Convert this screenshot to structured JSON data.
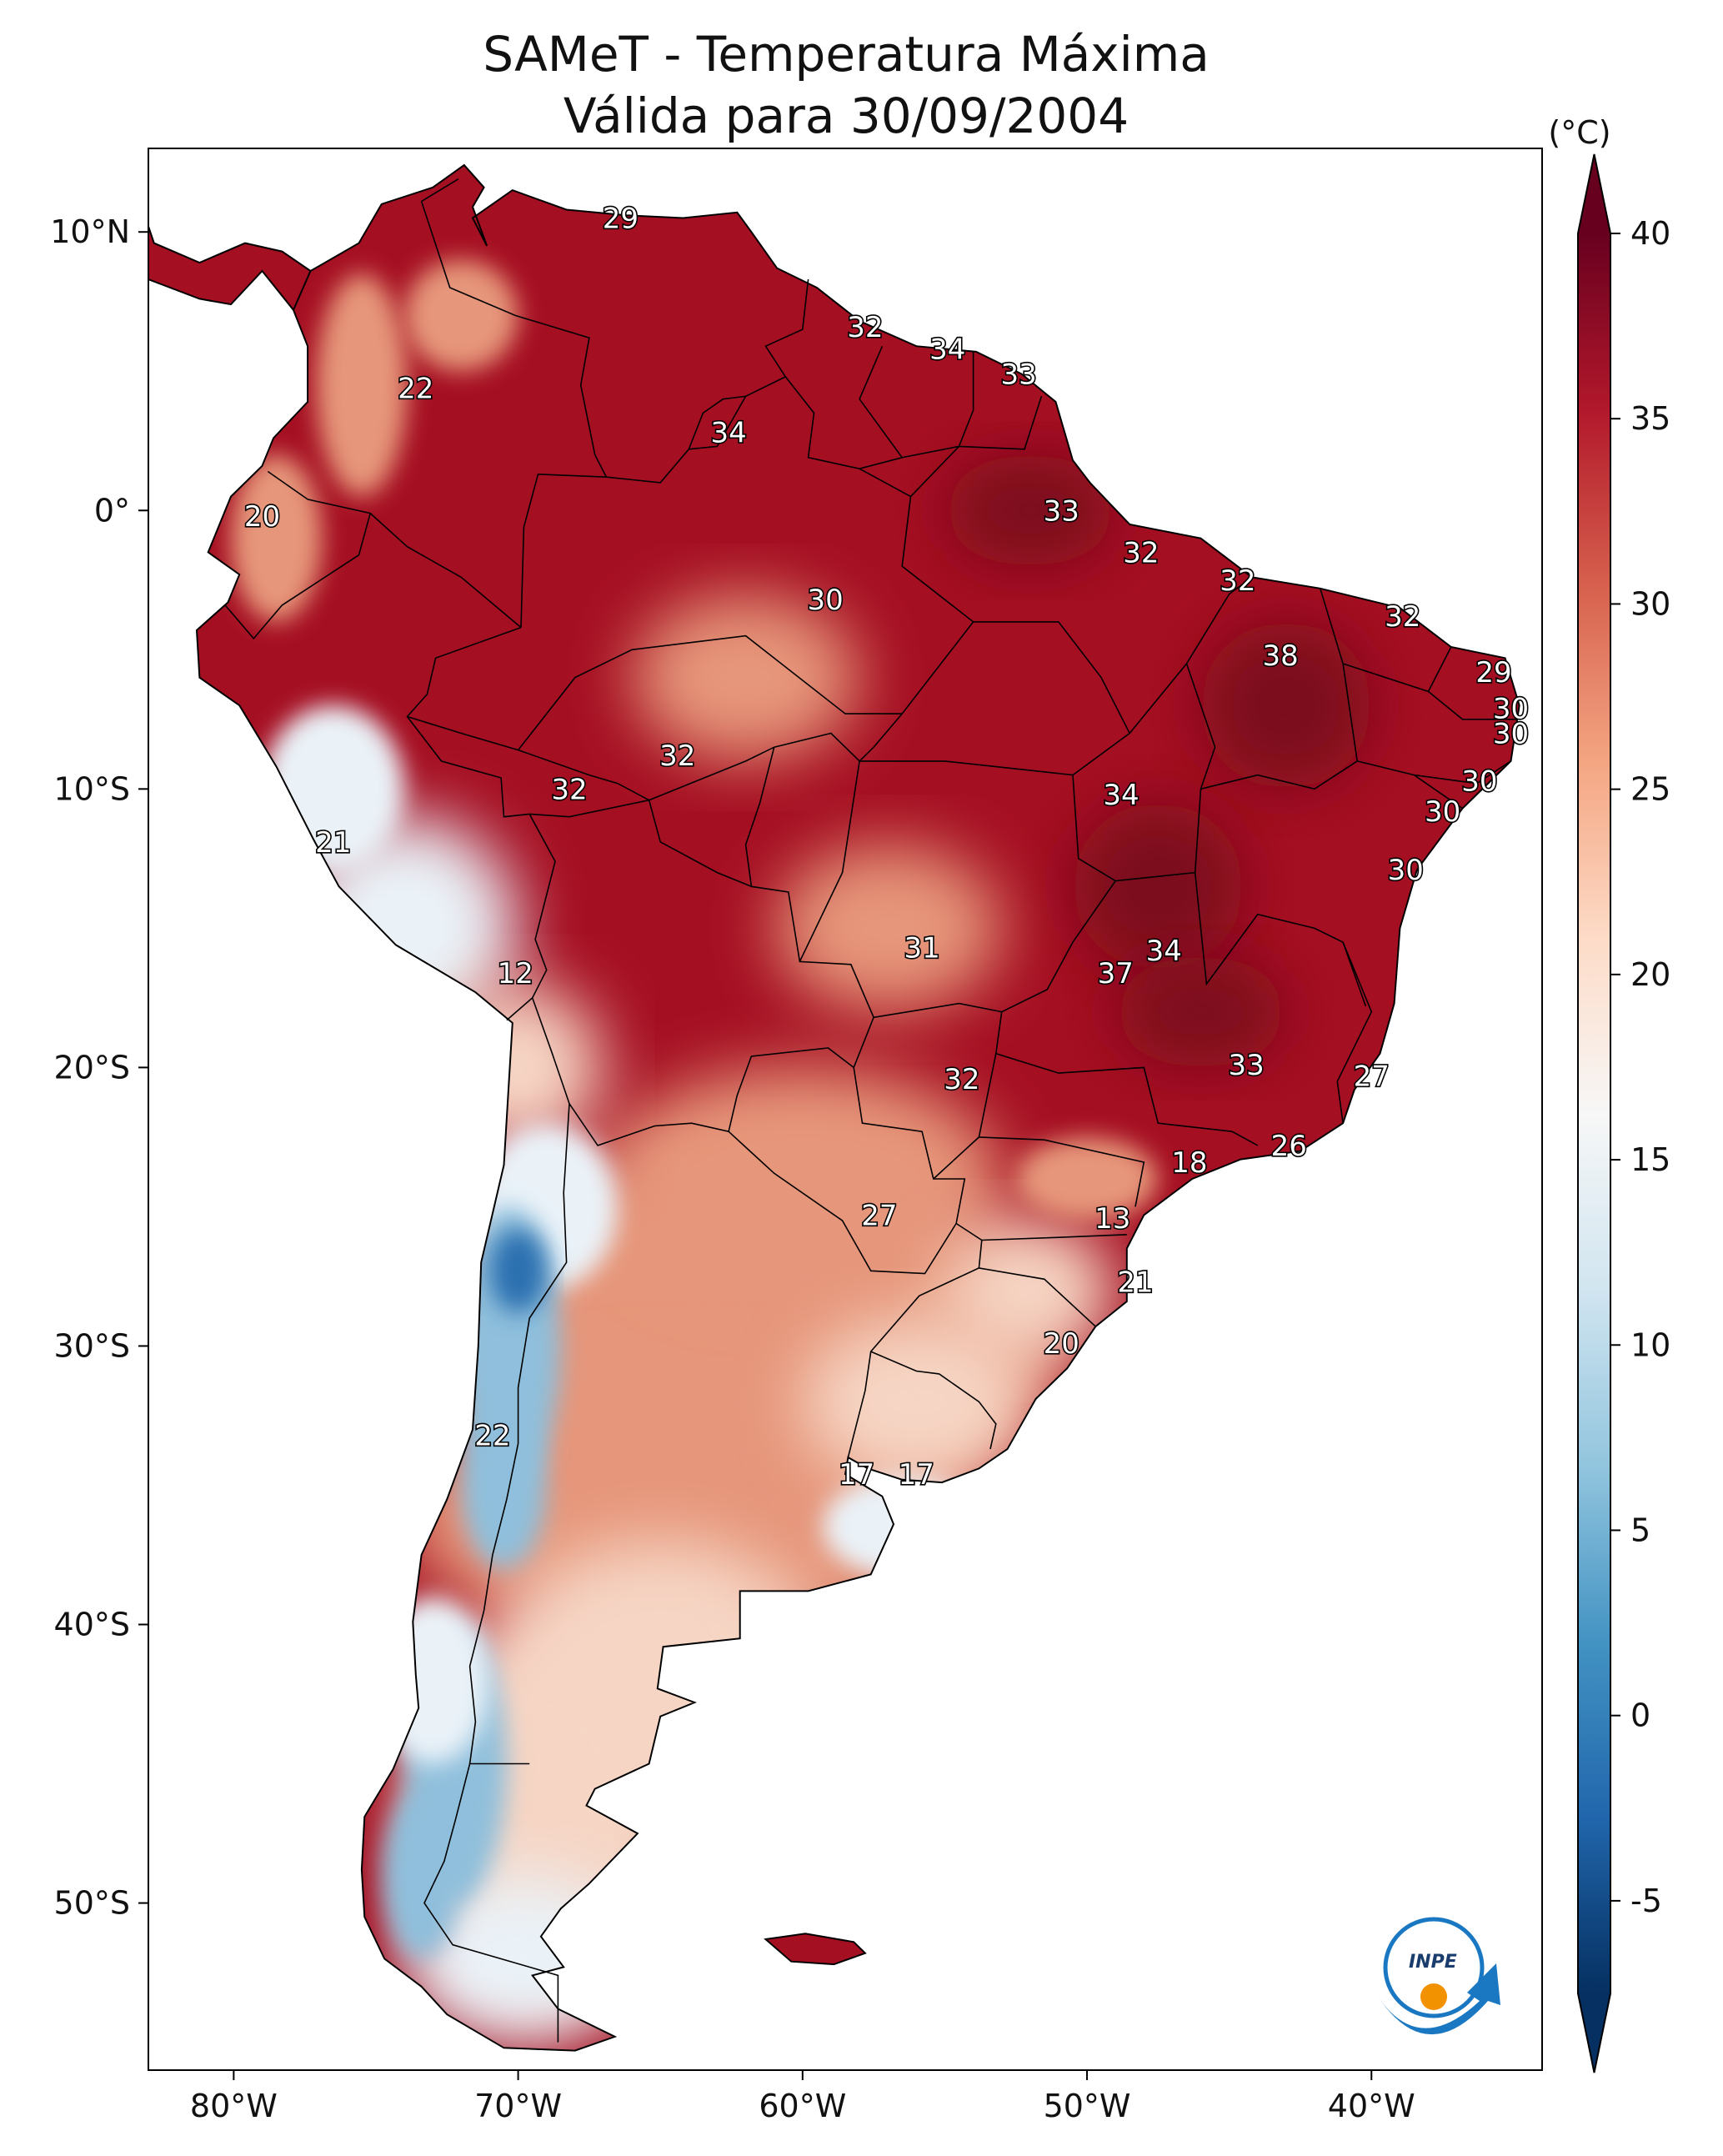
{
  "title": {
    "line1": "SAMeT - Temperatura Máxima",
    "line2": "Válida para 30/09/2004"
  },
  "map": {
    "extent": {
      "lon_min": -83,
      "lon_max": -34,
      "lat_min": -56,
      "lat_max": 13
    },
    "lon_ticks": [
      {
        "lon": -80,
        "label": "80°W"
      },
      {
        "lon": -70,
        "label": "70°W"
      },
      {
        "lon": -60,
        "label": "60°W"
      },
      {
        "lon": -50,
        "label": "50°W"
      },
      {
        "lon": -40,
        "label": "40°W"
      }
    ],
    "lat_ticks": [
      {
        "lat": 10,
        "label": "10°N"
      },
      {
        "lat": 0,
        "label": "0°"
      },
      {
        "lat": -10,
        "label": "10°S"
      },
      {
        "lat": -20,
        "label": "20°S"
      },
      {
        "lat": -30,
        "label": "30°S"
      },
      {
        "lat": -40,
        "label": "40°S"
      },
      {
        "lat": -50,
        "label": "50°S"
      }
    ],
    "value_labels": [
      {
        "lon": -66.4,
        "lat": 10.5,
        "text": "29"
      },
      {
        "lon": -57.8,
        "lat": 6.6,
        "text": "32"
      },
      {
        "lon": -54.9,
        "lat": 5.8,
        "text": "34"
      },
      {
        "lon": -52.4,
        "lat": 4.9,
        "text": "33"
      },
      {
        "lon": -73.6,
        "lat": 4.4,
        "text": "22"
      },
      {
        "lon": -62.6,
        "lat": 2.8,
        "text": "34"
      },
      {
        "lon": -79.0,
        "lat": -0.2,
        "text": "20"
      },
      {
        "lon": -50.9,
        "lat": 0.0,
        "text": "33"
      },
      {
        "lon": -48.1,
        "lat": -1.5,
        "text": "32"
      },
      {
        "lon": -59.2,
        "lat": -3.2,
        "text": "30"
      },
      {
        "lon": -44.7,
        "lat": -2.5,
        "text": "32"
      },
      {
        "lon": -38.9,
        "lat": -3.8,
        "text": "32"
      },
      {
        "lon": -43.2,
        "lat": -5.2,
        "text": "38"
      },
      {
        "lon": -35.7,
        "lat": -5.8,
        "text": "29"
      },
      {
        "lon": -35.1,
        "lat": -7.1,
        "text": "30"
      },
      {
        "lon": -35.1,
        "lat": -8.0,
        "text": "30"
      },
      {
        "lon": -36.2,
        "lat": -9.7,
        "text": "30"
      },
      {
        "lon": -37.5,
        "lat": -10.8,
        "text": "30"
      },
      {
        "lon": -38.8,
        "lat": -12.9,
        "text": "30"
      },
      {
        "lon": -64.4,
        "lat": -8.8,
        "text": "32"
      },
      {
        "lon": -68.2,
        "lat": -10.0,
        "text": "32"
      },
      {
        "lon": -48.8,
        "lat": -10.2,
        "text": "34"
      },
      {
        "lon": -76.5,
        "lat": -11.9,
        "text": "21"
      },
      {
        "lon": -70.1,
        "lat": -16.6,
        "text": "12"
      },
      {
        "lon": -55.8,
        "lat": -15.7,
        "text": "31"
      },
      {
        "lon": -47.3,
        "lat": -15.8,
        "text": "34"
      },
      {
        "lon": -49.0,
        "lat": -16.6,
        "text": "37"
      },
      {
        "lon": -44.4,
        "lat": -19.9,
        "text": "33"
      },
      {
        "lon": -54.4,
        "lat": -20.4,
        "text": "32"
      },
      {
        "lon": -40.0,
        "lat": -20.3,
        "text": "27"
      },
      {
        "lon": -42.9,
        "lat": -22.8,
        "text": "26"
      },
      {
        "lon": -46.4,
        "lat": -23.4,
        "text": "18"
      },
      {
        "lon": -57.3,
        "lat": -25.3,
        "text": "27"
      },
      {
        "lon": -49.1,
        "lat": -25.4,
        "text": "13"
      },
      {
        "lon": -48.3,
        "lat": -27.7,
        "text": "21"
      },
      {
        "lon": -50.9,
        "lat": -29.9,
        "text": "20"
      },
      {
        "lon": -70.9,
        "lat": -33.2,
        "text": "22"
      },
      {
        "lon": -58.1,
        "lat": -34.6,
        "text": "17"
      },
      {
        "lon": -56.0,
        "lat": -34.6,
        "text": "17"
      }
    ]
  },
  "colorbar": {
    "unit": "(°C)",
    "min": -7.5,
    "max": 40,
    "ticks": [
      {
        "value": 40,
        "label": "40"
      },
      {
        "value": 35,
        "label": "35"
      },
      {
        "value": 30,
        "label": "30"
      },
      {
        "value": 25,
        "label": "25"
      },
      {
        "value": 20,
        "label": "20"
      },
      {
        "value": 15,
        "label": "15"
      },
      {
        "value": 10,
        "label": "10"
      },
      {
        "value": 5,
        "label": "5"
      },
      {
        "value": 0,
        "label": "0"
      },
      {
        "value": -5,
        "label": "-5"
      }
    ],
    "colors": [
      "#053061",
      "#2166ac",
      "#4393c3",
      "#92c5de",
      "#d1e5f0",
      "#f7f7f7",
      "#fddbc7",
      "#f4a582",
      "#d6604d",
      "#b2182b",
      "#67001f"
    ]
  },
  "logo": {
    "text": "INPE",
    "primary_color": "#1a78c2",
    "accent_color": "#f39200"
  },
  "colors": {
    "hot": "#a50f22",
    "very_hot": "#7a0a1c",
    "warm": "#e6967a",
    "mild": "#f6d5c4",
    "cool": "#eaf2f8",
    "cold": "#8fbfdc",
    "very_cold": "#2c6fb0"
  }
}
